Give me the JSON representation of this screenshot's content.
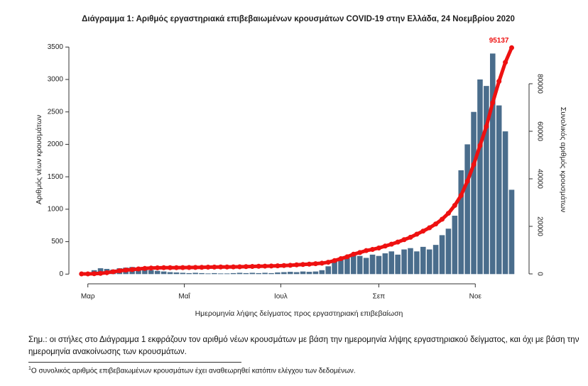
{
  "chart_data": {
    "type": "bar-line",
    "title": "Διάγραμμα 1: Αριθμός εργαστηριακά επιβεβαιωμένων κρουσμάτων COVID-19 στην Ελλάδα, 24 Νοεμβρίου 2020",
    "y_label": "Αριθμός νέων κρουσμάτων",
    "y2_label": "Συνολικός αριθμός κρουσμάτων",
    "x_label": "Ημερομηνία λήψης δείγματος προς εργαστηριακή επιβεβαίωση",
    "x": [
      57,
      61,
      65,
      69,
      73,
      77,
      81,
      85,
      89,
      93,
      97,
      101,
      105,
      109,
      113,
      117,
      121,
      125,
      129,
      133,
      137,
      141,
      145,
      149,
      153,
      157,
      161,
      165,
      169,
      173,
      177,
      181,
      185,
      189,
      193,
      197,
      201,
      205,
      209,
      213,
      217,
      221,
      225,
      229,
      233,
      237,
      241,
      245,
      249,
      253,
      257,
      261,
      265,
      269,
      273,
      277,
      281,
      285,
      289,
      293,
      297,
      301,
      305,
      309,
      313,
      317,
      321,
      325,
      329
    ],
    "series": [
      {
        "type": "bar",
        "color": "#4a6d8c",
        "values": [
          5,
          20,
          60,
          90,
          80,
          70,
          90,
          100,
          110,
          90,
          100,
          60,
          50,
          40,
          30,
          25,
          20,
          15,
          20,
          15,
          10,
          15,
          10,
          10,
          15,
          20,
          15,
          20,
          15,
          20,
          15,
          25,
          30,
          35,
          30,
          40,
          35,
          40,
          60,
          120,
          200,
          250,
          250,
          300,
          280,
          250,
          300,
          280,
          320,
          350,
          300,
          380,
          400,
          350,
          420,
          380,
          450,
          600,
          700,
          900,
          1600,
          2000,
          2500,
          3000,
          2900,
          3400,
          2600,
          2200,
          1300
        ]
      },
      {
        "type": "line",
        "axis": "y2",
        "color": "#ee1111",
        "values": [
          3,
          7,
          70,
          230,
          500,
          900,
          1300,
          1600,
          1830,
          2100,
          2300,
          2450,
          2550,
          2600,
          2620,
          2630,
          2650,
          2690,
          2720,
          2750,
          2840,
          2880,
          2900,
          2920,
          2940,
          2980,
          3050,
          3120,
          3200,
          3260,
          3320,
          3400,
          3520,
          3620,
          3800,
          3950,
          4100,
          4300,
          4500,
          4900,
          5600,
          6400,
          7200,
          8300,
          9000,
          9800,
          10300,
          10900,
          11700,
          12500,
          13400,
          14400,
          15400,
          16700,
          18000,
          19400,
          21000,
          23000,
          25500,
          28800,
          33000,
          39000,
          46000,
          54000,
          62000,
          72000,
          81000,
          89000,
          95137
        ]
      }
    ],
    "xlim": [
      49,
      340
    ],
    "xticks": [
      {
        "value": 61,
        "label": "Μαρ"
      },
      {
        "value": 122,
        "label": "Μαΐ"
      },
      {
        "value": 183,
        "label": "Ιουλ"
      },
      {
        "value": 245,
        "label": "Σεπ"
      },
      {
        "value": 306,
        "label": "Νοε"
      }
    ],
    "ylim": [
      -150,
      3700
    ],
    "yticks": [
      0,
      500,
      1000,
      1500,
      2000,
      2500,
      3000,
      3500
    ],
    "y2lim": [
      -4180,
      100900
    ],
    "y2ticks": [
      0,
      20000,
      40000,
      60000,
      80000
    ]
  },
  "note": "Σημ.: οι στήλες στο Διάγραμμα 1 εκφράζουν τον αριθμό νέων κρουσμάτων με βάση την ημερομηνία λήψης εργαστηριακού δείγματος, και όχι με βάση την ημερομηνία ανακοίνωσης των κρουσμάτων.",
  "footnote": {
    "mark": "1",
    "text": "Ο συνολικός αριθμός επιβεβαιωμένων κρουσμάτων έχει αναθεωρηθεί κατόπιν ελέγχου των δεδομένων."
  }
}
